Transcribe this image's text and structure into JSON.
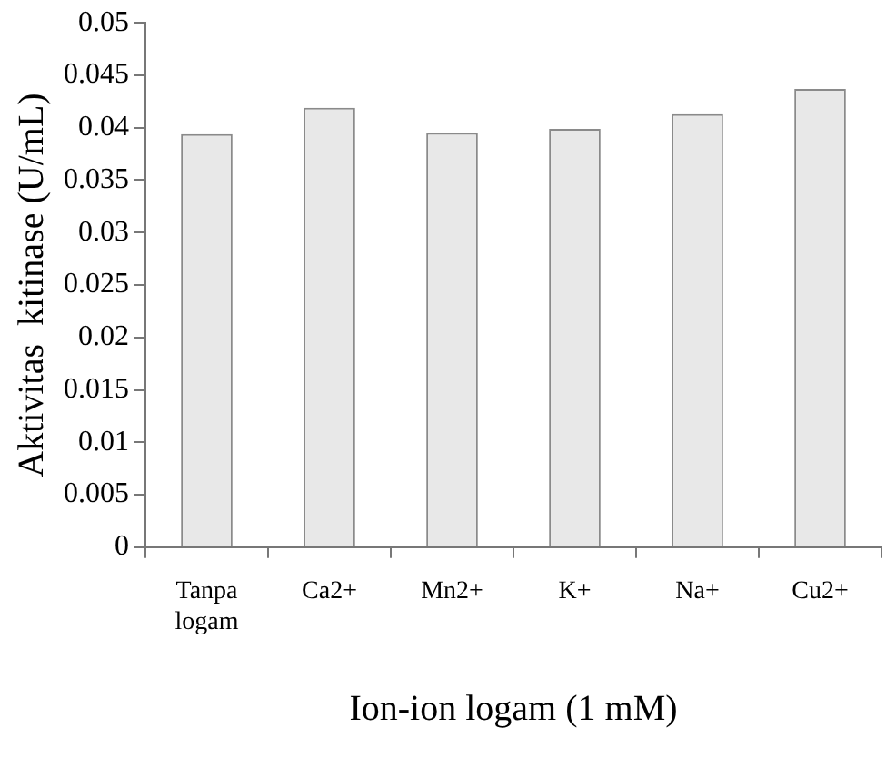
{
  "chart_data": {
    "type": "bar",
    "categories": [
      "Tanpa logam",
      "Ca2+",
      "Mn2+",
      "K+",
      "Na+",
      "Cu2+"
    ],
    "values": [
      0.0394,
      0.0419,
      0.0395,
      0.0399,
      0.0413,
      0.0437
    ],
    "color": "#e8e8e8",
    "xlabel": "Ion-ion logam (1 mM)",
    "ylabel": "Aktivitas  kitinase (U/mL)",
    "ylim": [
      0,
      0.05
    ],
    "yticks": [
      0,
      0.005,
      0.01,
      0.015,
      0.02,
      0.025,
      0.03,
      0.035,
      0.04,
      0.045,
      0.05
    ],
    "grid": false,
    "legend": false
  }
}
